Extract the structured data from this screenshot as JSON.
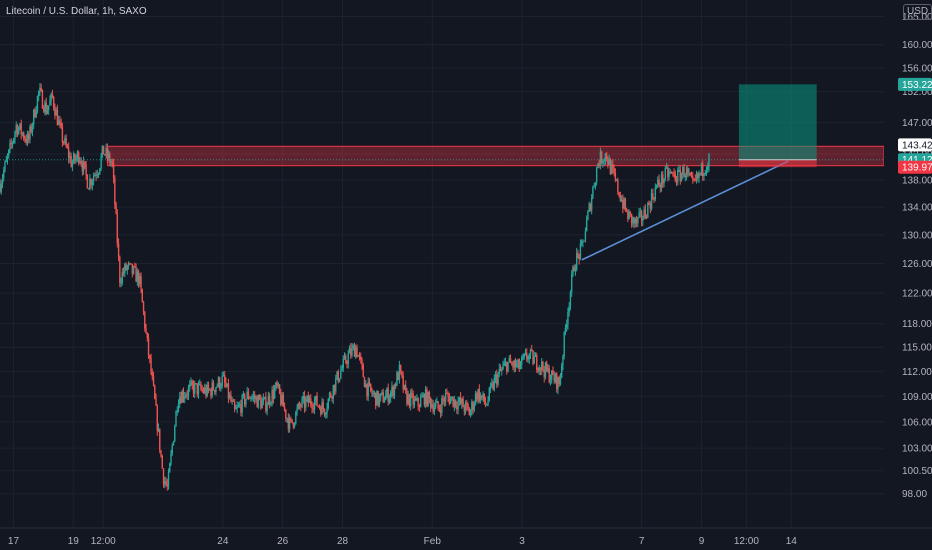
{
  "title": "Litecoin / U.S. Dollar, 1h, SAXO",
  "currency_button": "USD",
  "chart_data": {
    "type": "candlestick",
    "y_axis": {
      "scale": "log",
      "ticks": [
        "98.00",
        "100.50",
        "103.00",
        "106.00",
        "109.00",
        "112.00",
        "115.00",
        "118.00",
        "122.00",
        "126.00",
        "130.00",
        "134.00",
        "138.00",
        "142.00",
        "147.00",
        "152.00",
        "156.00",
        "160.00",
        "165.00"
      ],
      "ylim": [
        94.4,
        168
      ]
    },
    "x_axis": {
      "ticks": [
        {
          "label": "17",
          "day": 17
        },
        {
          "label": "19",
          "day": 19
        },
        {
          "label": "12:00",
          "day": 20
        },
        {
          "label": "24",
          "day": 24
        },
        {
          "label": "26",
          "day": 26
        },
        {
          "label": "28",
          "day": 28
        },
        {
          "label": "Feb",
          "day": 31
        },
        {
          "label": "3",
          "day": 34
        },
        {
          "label": "7",
          "day": 38
        },
        {
          "label": "9",
          "day": 40
        },
        {
          "label": "12:00",
          "day": 41.5
        },
        {
          "label": "14",
          "day": 43
        }
      ],
      "xlim": [
        16.55,
        46.1
      ]
    },
    "price_path": [
      [
        16.55,
        137.5
      ],
      [
        16.85,
        142
      ],
      [
        17.1,
        146.5
      ],
      [
        17.5,
        144
      ],
      [
        17.85,
        152
      ],
      [
        18.1,
        149
      ],
      [
        18.3,
        151
      ],
      [
        18.6,
        145
      ],
      [
        18.95,
        140.5
      ],
      [
        19.2,
        142
      ],
      [
        19.5,
        137.5
      ],
      [
        19.85,
        140
      ],
      [
        20.0,
        142.5
      ],
      [
        20.3,
        140.5
      ],
      [
        20.55,
        124
      ],
      [
        20.8,
        125.5
      ],
      [
        21.2,
        124
      ],
      [
        21.45,
        116
      ],
      [
        21.7,
        109
      ],
      [
        22.0,
        100
      ],
      [
        22.15,
        98.5
      ],
      [
        22.5,
        109
      ],
      [
        23.0,
        110
      ],
      [
        23.5,
        109.5
      ],
      [
        24.0,
        111
      ],
      [
        24.4,
        107
      ],
      [
        24.85,
        109.2
      ],
      [
        25.4,
        108
      ],
      [
        25.8,
        110
      ],
      [
        26.25,
        105.5
      ],
      [
        26.6,
        108
      ],
      [
        27.0,
        108.5
      ],
      [
        27.4,
        107.5
      ],
      [
        27.8,
        111
      ],
      [
        28.2,
        114
      ],
      [
        28.45,
        115
      ],
      [
        28.8,
        110
      ],
      [
        29.2,
        108.5
      ],
      [
        29.65,
        109.5
      ],
      [
        29.9,
        112
      ],
      [
        30.1,
        109
      ],
      [
        30.5,
        108
      ],
      [
        30.75,
        109
      ],
      [
        31.2,
        107.5
      ],
      [
        31.45,
        109
      ],
      [
        32.0,
        108
      ],
      [
        32.25,
        107
      ],
      [
        32.5,
        109.5
      ],
      [
        32.8,
        108
      ],
      [
        33.1,
        111
      ],
      [
        33.5,
        113
      ],
      [
        33.9,
        112.5
      ],
      [
        34.2,
        114
      ],
      [
        34.55,
        113
      ],
      [
        34.8,
        112
      ],
      [
        35.25,
        110.5
      ],
      [
        35.5,
        119
      ],
      [
        35.75,
        126
      ],
      [
        36.0,
        128
      ],
      [
        36.3,
        135
      ],
      [
        36.55,
        141
      ],
      [
        36.8,
        142
      ],
      [
        37.1,
        138
      ],
      [
        37.5,
        133
      ],
      [
        37.8,
        131.5
      ],
      [
        38.1,
        133
      ],
      [
        38.5,
        137
      ],
      [
        38.85,
        139
      ],
      [
        39.2,
        138.5
      ],
      [
        39.45,
        139.5
      ],
      [
        39.7,
        137
      ],
      [
        39.9,
        138.5
      ],
      [
        40.1,
        140.2
      ],
      [
        40.25,
        141.12
      ]
    ],
    "resistance_zone": {
      "from": 140.2,
      "to": 143.2,
      "x_start": 20.15,
      "x_end": 46.1
    },
    "trendline": [
      [
        36.0,
        126.5
      ],
      [
        42.9,
        140.9
      ]
    ],
    "position": {
      "type": "long",
      "entry": 141.12,
      "target": 153.22,
      "stop": 139.97,
      "x_start": 41.25,
      "x_end": 43.85
    },
    "price_labels": [
      {
        "text": "153.22",
        "value": 153.22,
        "color": "#26a69a"
      },
      {
        "text": "143.42",
        "value": 143.42,
        "color": "#ffffff"
      },
      {
        "text": "141.12",
        "value": 141.12,
        "color": "#26a69a"
      },
      {
        "text": "139.97",
        "value": 139.97,
        "color": "#f23645"
      }
    ],
    "up_color": "#26a69a",
    "down_color": "#ef5350",
    "background": "#131722"
  }
}
